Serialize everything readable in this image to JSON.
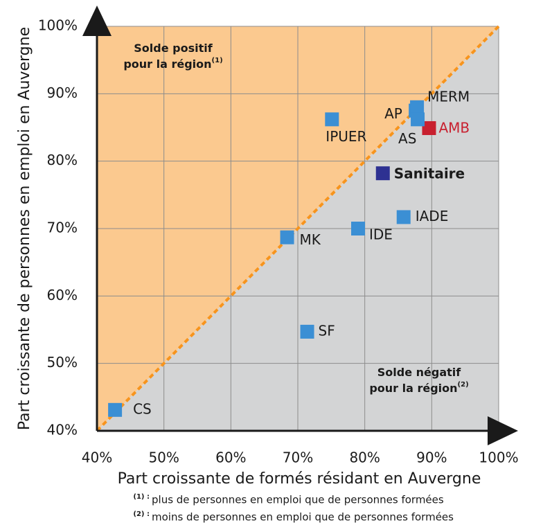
{
  "chart_data": {
    "type": "scatter",
    "x_label": "Part croissante de formés résidant en Auvergne",
    "y_label": "Part croissante de personnes en emploi en Auvergne",
    "xlim": [
      40,
      100
    ],
    "ylim": [
      40,
      100
    ],
    "xticks": [
      {
        "value": 40,
        "label": "40%"
      },
      {
        "value": 50,
        "label": "50%"
      },
      {
        "value": 60,
        "label": "60%"
      },
      {
        "value": 70,
        "label": "70%"
      },
      {
        "value": 80,
        "label": "80%"
      },
      {
        "value": 90,
        "label": "90%"
      },
      {
        "value": 100,
        "label": "100%"
      }
    ],
    "yticks": [
      {
        "value": 40,
        "label": "40%"
      },
      {
        "value": 50,
        "label": "50%"
      },
      {
        "value": 60,
        "label": "60%"
      },
      {
        "value": 70,
        "label": "70%"
      },
      {
        "value": 80,
        "label": "80%"
      },
      {
        "value": 90,
        "label": "90%"
      },
      {
        "value": 100,
        "label": "100%"
      }
    ],
    "grid": true,
    "upper_color": "#fbc98f",
    "lower_color": "#d3d4d5",
    "diagonal_color": "#f7941d",
    "points": [
      {
        "label": "CS",
        "x": 42.7,
        "y": 43.1,
        "color": "#3b8fd4",
        "label_color": "#1a1a1a"
      },
      {
        "label": "MK",
        "x": 68.4,
        "y": 68.7,
        "color": "#3b8fd4",
        "label_color": "#1a1a1a"
      },
      {
        "label": "IDE",
        "x": 79.0,
        "y": 70.0,
        "color": "#3b8fd4",
        "label_color": "#1a1a1a"
      },
      {
        "label": "SF",
        "x": 71.4,
        "y": 54.7,
        "color": "#3b8fd4",
        "label_color": "#1a1a1a"
      },
      {
        "label": "IPUER",
        "x": 75.1,
        "y": 86.2,
        "color": "#3b8fd4",
        "label_color": "#1a1a1a"
      },
      {
        "label": "Sanitaire",
        "x": 82.7,
        "y": 78.2,
        "color": "#2e3192",
        "label_color": "#1a1a1a",
        "bold": true
      },
      {
        "label": "IADE",
        "x": 85.8,
        "y": 71.7,
        "color": "#3b8fd4",
        "label_color": "#1a1a1a"
      },
      {
        "label": "AMB",
        "x": 89.6,
        "y": 84.9,
        "color": "#c8202f",
        "label_color": "#c8202f"
      },
      {
        "label": "AP",
        "x": 87.6,
        "y": 87.5,
        "color": "#3b8fd4",
        "label_color": "#1a1a1a"
      },
      {
        "label": "MERM",
        "x": 87.8,
        "y": 88.0,
        "color": "#3b8fd4",
        "label_color": "#1a1a1a"
      },
      {
        "label": "AS",
        "x": 87.9,
        "y": 86.2,
        "color": "#3b8fd4",
        "label_color": "#1a1a1a"
      }
    ],
    "annotations": [
      {
        "lines": [
          "Solde positif",
          "pour la région"
        ],
        "note": "(1)"
      },
      {
        "lines": [
          "Solde négatif",
          "pour la région"
        ],
        "note": "(2)"
      }
    ],
    "footnotes": [
      {
        "mark": "(1) :",
        "text": "plus de personnes en emploi que de personnes formées"
      },
      {
        "mark": "(2) :",
        "text": "moins de personnes en emploi que de personnes formées"
      }
    ]
  }
}
